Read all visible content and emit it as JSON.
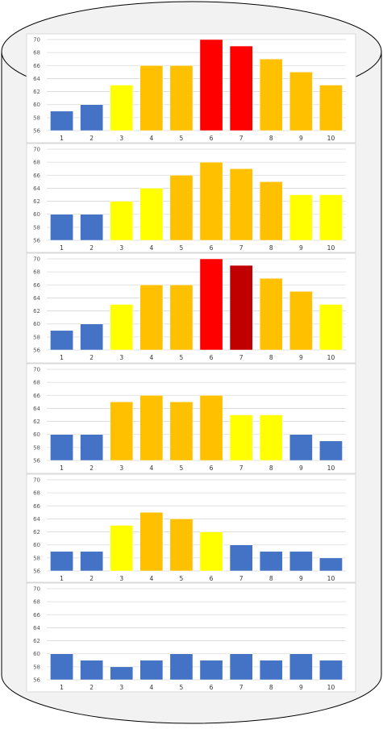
{
  "colors": {
    "blue": "#4472C4",
    "yellow": "#FFFF00",
    "amber": "#FFC000",
    "red": "#FF0000",
    "darkred": "#C00000",
    "cylinder_fill": "#F2F2F2",
    "cylinder_stroke": "#000000",
    "grid": "#D9D9D9",
    "axis_text": "#595959"
  },
  "chart_data": [
    {
      "type": "bar",
      "categories": [
        "1",
        "2",
        "3",
        "4",
        "5",
        "6",
        "7",
        "8",
        "9",
        "10"
      ],
      "values": [
        59,
        60,
        63,
        66,
        66,
        70,
        69,
        67,
        65,
        63
      ],
      "colors": [
        "blue",
        "blue",
        "yellow",
        "amber",
        "amber",
        "red",
        "red",
        "amber",
        "amber",
        "amber"
      ],
      "ylim": [
        56,
        70
      ],
      "yticks": [
        "56",
        "58",
        "60",
        "62",
        "64",
        "66",
        "68",
        "70"
      ],
      "grid": true
    },
    {
      "type": "bar",
      "categories": [
        "1",
        "2",
        "3",
        "4",
        "5",
        "6",
        "7",
        "8",
        "9",
        "10"
      ],
      "values": [
        60,
        60,
        62,
        64,
        66,
        68,
        67,
        65,
        63,
        63
      ],
      "colors": [
        "blue",
        "blue",
        "yellow",
        "yellow",
        "amber",
        "amber",
        "amber",
        "amber",
        "yellow",
        "yellow"
      ],
      "ylim": [
        56,
        70
      ],
      "yticks": [
        "56",
        "58",
        "60",
        "62",
        "64",
        "66",
        "68",
        "70"
      ],
      "grid": true
    },
    {
      "type": "bar",
      "categories": [
        "1",
        "2",
        "3",
        "4",
        "5",
        "6",
        "7",
        "8",
        "9",
        "10"
      ],
      "values": [
        59,
        60,
        63,
        66,
        66,
        70,
        69,
        67,
        65,
        63
      ],
      "colors": [
        "blue",
        "blue",
        "yellow",
        "amber",
        "amber",
        "red",
        "darkred",
        "amber",
        "amber",
        "yellow"
      ],
      "ylim": [
        56,
        70
      ],
      "yticks": [
        "56",
        "58",
        "60",
        "62",
        "64",
        "66",
        "68",
        "70"
      ],
      "grid": true
    },
    {
      "type": "bar",
      "categories": [
        "1",
        "2",
        "3",
        "4",
        "5",
        "6",
        "7",
        "8",
        "9",
        "10"
      ],
      "values": [
        60,
        60,
        65,
        66,
        65,
        66,
        63,
        63,
        60,
        59
      ],
      "colors": [
        "blue",
        "blue",
        "amber",
        "amber",
        "amber",
        "amber",
        "yellow",
        "yellow",
        "blue",
        "blue"
      ],
      "ylim": [
        56,
        70
      ],
      "yticks": [
        "56",
        "58",
        "60",
        "62",
        "64",
        "66",
        "68",
        "70"
      ],
      "grid": true
    },
    {
      "type": "bar",
      "categories": [
        "1",
        "2",
        "3",
        "4",
        "5",
        "6",
        "7",
        "8",
        "9",
        "10"
      ],
      "values": [
        59,
        59,
        63,
        65,
        64,
        62,
        60,
        59,
        59,
        58
      ],
      "colors": [
        "blue",
        "blue",
        "yellow",
        "amber",
        "amber",
        "yellow",
        "blue",
        "blue",
        "blue",
        "blue"
      ],
      "ylim": [
        56,
        70
      ],
      "yticks": [
        "56",
        "58",
        "60",
        "62",
        "64",
        "66",
        "68",
        "70"
      ],
      "grid": true
    },
    {
      "type": "bar",
      "categories": [
        "1",
        "2",
        "3",
        "4",
        "5",
        "6",
        "7",
        "8",
        "9",
        "10"
      ],
      "values": [
        60,
        59,
        58,
        59,
        60,
        59,
        60,
        59,
        60,
        59
      ],
      "colors": [
        "blue",
        "blue",
        "blue",
        "blue",
        "blue",
        "blue",
        "blue",
        "blue",
        "blue",
        "blue"
      ],
      "ylim": [
        56,
        70
      ],
      "yticks": [
        "56",
        "58",
        "60",
        "62",
        "64",
        "66",
        "68",
        "70"
      ],
      "grid": true
    }
  ]
}
